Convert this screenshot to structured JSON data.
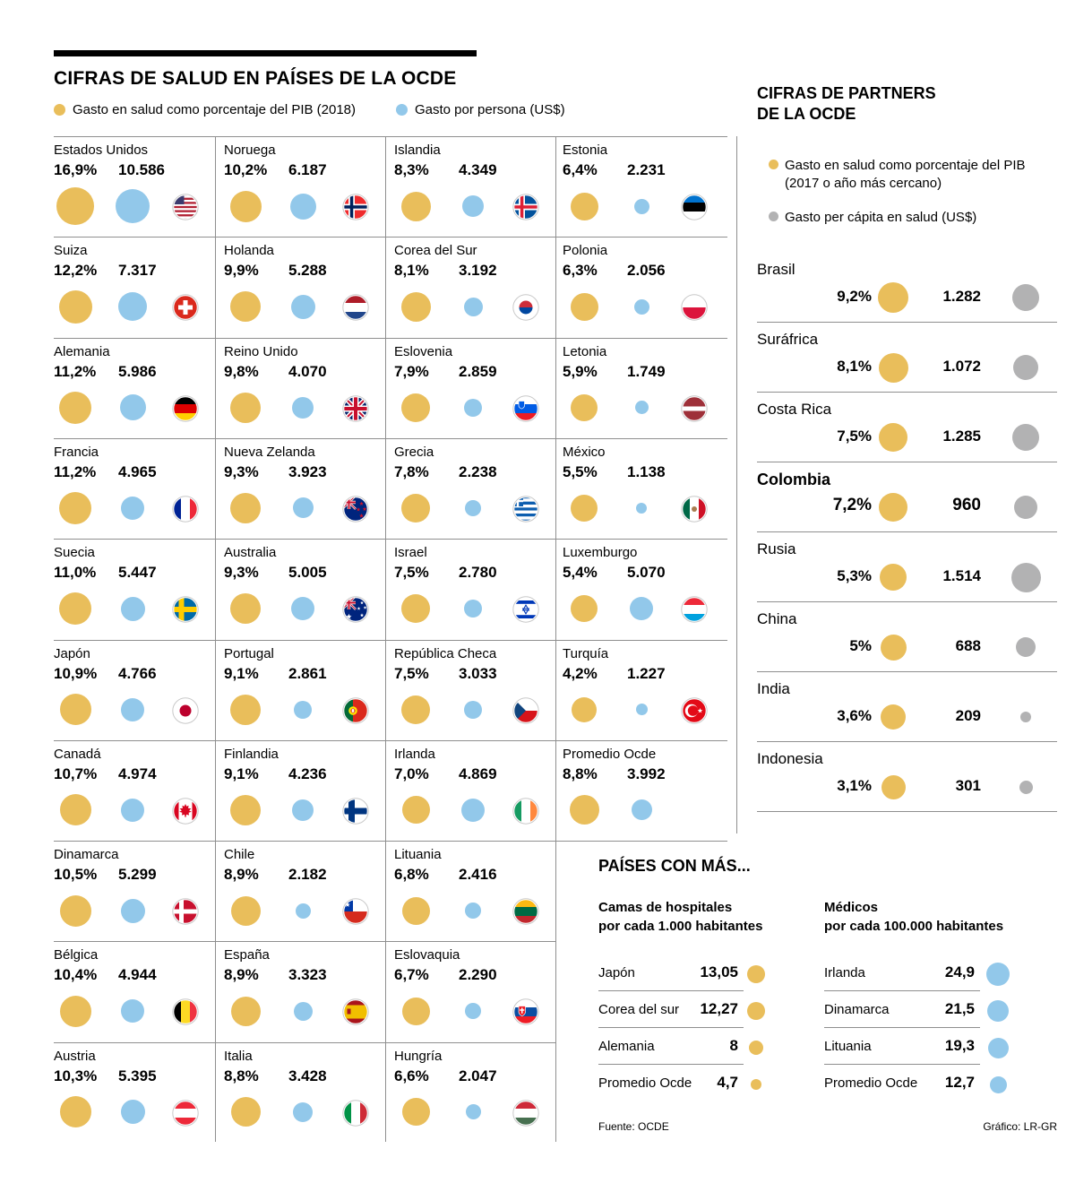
{
  "header": {
    "title": "CIFRAS DE SALUD EN PAÍSES DE LA OCDE",
    "legend_gdp": "Gasto en salud como porcentaje del PIB (2018)",
    "legend_person": "Gasto por persona (US$)"
  },
  "colors": {
    "yellow": "#E9BE5B",
    "blue": "#92C8EA",
    "gray": "#B2B2B3"
  },
  "partners": {
    "title_line1": "CIFRAS DE PARTNERS",
    "title_line2": "DE LA OCDE",
    "legend_gdp": "Gasto en salud como porcentaje del PIB (2017 o año más cercano)",
    "legend_capita": "Gasto per cápita en salud (US$)"
  },
  "bottom": {
    "title": "PAÍSES CON MÁS...",
    "beds_line1": "Camas de hospitales",
    "beds_line2": "por cada 1.000 habitantes",
    "doctors_line1": "Médicos",
    "doctors_line2": "por cada 100.000 habitantes"
  },
  "footer": {
    "source": "Fuente: OCDE",
    "credit": "Gráfico: LR-GR"
  },
  "chart_data": [
    {
      "type": "table",
      "title": "CIFRAS DE SALUD EN PAÍSES DE LA OCDE",
      "value_columns": [
        "Gasto en salud como porcentaje del PIB (2018)",
        "Gasto por persona (US$)"
      ],
      "columns": [
        [
          {
            "name": "Estados Unidos",
            "flag": "us",
            "pib": "16,9%",
            "gasto": "10.586"
          },
          {
            "name": "Suiza",
            "flag": "ch",
            "pib": "12,2%",
            "gasto": "7.317"
          },
          {
            "name": "Alemania",
            "flag": "de",
            "pib": "11,2%",
            "gasto": "5.986"
          },
          {
            "name": "Francia",
            "flag": "fr",
            "pib": "11,2%",
            "gasto": "4.965"
          },
          {
            "name": "Suecia",
            "flag": "se",
            "pib": "11,0%",
            "gasto": "5.447"
          },
          {
            "name": "Japón",
            "flag": "jp",
            "pib": "10,9%",
            "gasto": "4.766"
          },
          {
            "name": "Canadá",
            "flag": "ca",
            "pib": "10,7%",
            "gasto": "4.974"
          },
          {
            "name": "Dinamarca",
            "flag": "dk",
            "pib": "10,5%",
            "gasto": "5.299"
          },
          {
            "name": "Bélgica",
            "flag": "be",
            "pib": "10,4%",
            "gasto": "4.944"
          },
          {
            "name": "Austria",
            "flag": "at",
            "pib": "10,3%",
            "gasto": "5.395"
          }
        ],
        [
          {
            "name": "Noruega",
            "flag": "no",
            "pib": "10,2%",
            "gasto": "6.187"
          },
          {
            "name": "Holanda",
            "flag": "nl",
            "pib": "9,9%",
            "gasto": "5.288"
          },
          {
            "name": "Reino Unido",
            "flag": "gb",
            "pib": "9,8%",
            "gasto": "4.070"
          },
          {
            "name": "Nueva Zelanda",
            "flag": "nz",
            "pib": "9,3%",
            "gasto": "3.923"
          },
          {
            "name": "Australia",
            "flag": "au",
            "pib": "9,3%",
            "gasto": "5.005"
          },
          {
            "name": "Portugal",
            "flag": "pt",
            "pib": "9,1%",
            "gasto": "2.861"
          },
          {
            "name": "Finlandia",
            "flag": "fi",
            "pib": "9,1%",
            "gasto": "4.236"
          },
          {
            "name": "Chile",
            "flag": "cl",
            "pib": "8,9%",
            "gasto": "2.182"
          },
          {
            "name": "España",
            "flag": "es",
            "pib": "8,9%",
            "gasto": "3.323"
          },
          {
            "name": "Italia",
            "flag": "it",
            "pib": "8,8%",
            "gasto": "3.428"
          }
        ],
        [
          {
            "name": "Islandia",
            "flag": "is",
            "pib": "8,3%",
            "gasto": "4.349"
          },
          {
            "name": "Corea del Sur",
            "flag": "kr",
            "pib": "8,1%",
            "gasto": "3.192"
          },
          {
            "name": "Eslovenia",
            "flag": "si",
            "pib": "7,9%",
            "gasto": "2.859"
          },
          {
            "name": "Grecia",
            "flag": "gr",
            "pib": "7,8%",
            "gasto": "2.238"
          },
          {
            "name": "Israel",
            "flag": "il",
            "pib": "7,5%",
            "gasto": "2.780"
          },
          {
            "name": "República Checa",
            "flag": "cz",
            "pib": "7,5%",
            "gasto": "3.033"
          },
          {
            "name": "Irlanda",
            "flag": "ie",
            "pib": "7,0%",
            "gasto": "4.869"
          },
          {
            "name": "Lituania",
            "flag": "lt",
            "pib": "6,8%",
            "gasto": "2.416"
          },
          {
            "name": "Eslovaquia",
            "flag": "sk",
            "pib": "6,7%",
            "gasto": "2.290"
          },
          {
            "name": "Hungría",
            "flag": "hu",
            "pib": "6,6%",
            "gasto": "2.047"
          }
        ],
        [
          {
            "name": "Estonia",
            "flag": "ee",
            "pib": "6,4%",
            "gasto": "2.231"
          },
          {
            "name": "Polonia",
            "flag": "pl",
            "pib": "6,3%",
            "gasto": "2.056"
          },
          {
            "name": "Letonia",
            "flag": "lv",
            "pib": "5,9%",
            "gasto": "1.749"
          },
          {
            "name": "México",
            "flag": "mx",
            "pib": "5,5%",
            "gasto": "1.138"
          },
          {
            "name": "Luxemburgo",
            "flag": "lu",
            "pib": "5,4%",
            "gasto": "5.070"
          },
          {
            "name": "Turquía",
            "flag": "tr",
            "pib": "4,2%",
            "gasto": "1.227"
          },
          {
            "name": "Promedio Ocde",
            "flag": null,
            "pib": "8,8%",
            "gasto": "3.992"
          }
        ]
      ]
    },
    {
      "type": "table",
      "title": "CIFRAS DE PARTNERS DE LA OCDE",
      "value_columns": [
        "Gasto en salud como porcentaje del PIB (2017 o año más cercano)",
        "Gasto per cápita en salud (US$)"
      ],
      "rows": [
        {
          "name": "Brasil",
          "pct": "9,2%",
          "value": "1.282",
          "highlight": false
        },
        {
          "name": "Suráfrica",
          "pct": "8,1%",
          "value": "1.072",
          "highlight": false
        },
        {
          "name": "Costa Rica",
          "pct": "7,5%",
          "value": "1.285",
          "highlight": false
        },
        {
          "name": "Colombia",
          "pct": "7,2%",
          "value": "960",
          "highlight": true
        },
        {
          "name": "Rusia",
          "pct": "5,3%",
          "value": "1.514",
          "highlight": false
        },
        {
          "name": "China",
          "pct": "5%",
          "value": "688",
          "highlight": false
        },
        {
          "name": "India",
          "pct": "3,6%",
          "value": "209",
          "highlight": false
        },
        {
          "name": "Indonesia",
          "pct": "3,1%",
          "value": "301",
          "highlight": false
        }
      ]
    },
    {
      "type": "bar",
      "title": "Camas de hospitales por cada 1.000 habitantes",
      "categories": [
        "Japón",
        "Corea del sur",
        "Alemania",
        "Promedio Ocde"
      ],
      "values": [
        13.05,
        12.27,
        8,
        4.7
      ],
      "labels": [
        "13,05",
        "12,27",
        "8",
        "4,7"
      ]
    },
    {
      "type": "bar",
      "title": "Médicos por cada 100.000 habitantes",
      "categories": [
        "Irlanda",
        "Dinamarca",
        "Lituania",
        "Promedio Ocde"
      ],
      "values": [
        24.9,
        21.5,
        19.3,
        12.7
      ],
      "labels": [
        "24,9",
        "21,5",
        "19,3",
        "12,7"
      ]
    }
  ]
}
